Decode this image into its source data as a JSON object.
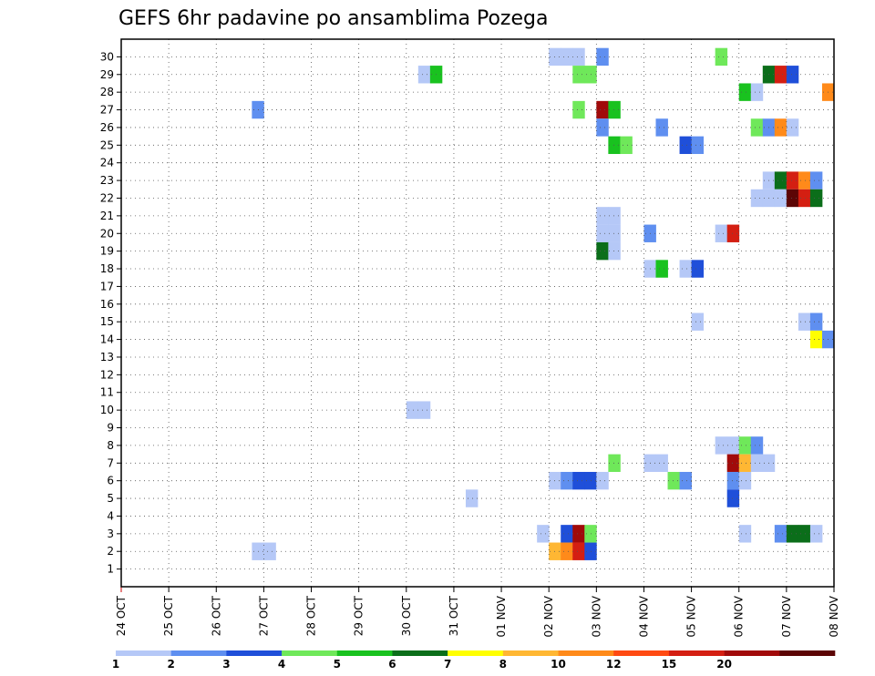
{
  "chart_data": {
    "type": "heatmap",
    "title": "GEFS 6hr padavine po ansamblima Pozega",
    "x_labels": [
      "24 OCT",
      "25 OCT",
      "26 OCT",
      "27 OCT",
      "28 OCT",
      "29 OCT",
      "30 OCT",
      "31 OCT",
      "01 NOV",
      "02 NOV",
      "03 NOV",
      "04 NOV",
      "05 NOV",
      "06 NOV",
      "07 NOV",
      "08 NOV"
    ],
    "y_labels": [
      "1",
      "2",
      "3",
      "4",
      "5",
      "6",
      "7",
      "8",
      "9",
      "10",
      "11",
      "12",
      "13",
      "14",
      "15",
      "16",
      "17",
      "18",
      "19",
      "20",
      "21",
      "22",
      "23",
      "24",
      "25",
      "26",
      "27",
      "28",
      "29",
      "30"
    ],
    "grid": true,
    "colorbar": {
      "colors": [
        "#b5c8f7",
        "#5f8ff0",
        "#1f4fd9",
        "#6fe85a",
        "#19c21f",
        "#0b6e1a",
        "#ffff00",
        "#ffb733",
        "#ff8a1a",
        "#ff4a12",
        "#d41f12",
        "#a10a0a",
        "#5c0505"
      ],
      "labels": [
        "1",
        "2",
        "3",
        "4",
        "5",
        "6",
        "7",
        "8",
        "10",
        "12",
        "15",
        "20"
      ]
    },
    "cells": [
      {
        "member": 30,
        "step": 36,
        "color": "#b5c8f7"
      },
      {
        "member": 30,
        "step": 37,
        "color": "#b5c8f7"
      },
      {
        "member": 30,
        "step": 38,
        "color": "#b5c8f7"
      },
      {
        "member": 30,
        "step": 40,
        "color": "#5f8ff0"
      },
      {
        "member": 30,
        "step": 50,
        "color": "#6fe85a"
      },
      {
        "member": 29,
        "step": 25,
        "color": "#b5c8f7"
      },
      {
        "member": 29,
        "step": 26,
        "color": "#19c21f"
      },
      {
        "member": 29,
        "step": 38,
        "color": "#6fe85a"
      },
      {
        "member": 29,
        "step": 39,
        "color": "#6fe85a"
      },
      {
        "member": 29,
        "step": 54,
        "color": "#0b6e1a"
      },
      {
        "member": 29,
        "step": 55,
        "color": "#d41f12"
      },
      {
        "member": 29,
        "step": 56,
        "color": "#1f4fd9"
      },
      {
        "member": 28,
        "step": 52,
        "color": "#19c21f"
      },
      {
        "member": 28,
        "step": 53,
        "color": "#b5c8f7"
      },
      {
        "member": 28,
        "step": 59,
        "color": "#ff8a1a"
      },
      {
        "member": 27,
        "step": 11,
        "color": "#5f8ff0"
      },
      {
        "member": 27,
        "step": 38,
        "color": "#6fe85a"
      },
      {
        "member": 27,
        "step": 40,
        "color": "#a10a0a"
      },
      {
        "member": 27,
        "step": 41,
        "color": "#19c21f"
      },
      {
        "member": 26,
        "step": 40,
        "color": "#5f8ff0"
      },
      {
        "member": 26,
        "step": 45,
        "color": "#5f8ff0"
      },
      {
        "member": 26,
        "step": 53,
        "color": "#6fe85a"
      },
      {
        "member": 26,
        "step": 54,
        "color": "#5f8ff0"
      },
      {
        "member": 26,
        "step": 55,
        "color": "#ff8a1a"
      },
      {
        "member": 26,
        "step": 56,
        "color": "#b5c8f7"
      },
      {
        "member": 25,
        "step": 41,
        "color": "#19c21f"
      },
      {
        "member": 25,
        "step": 42,
        "color": "#6fe85a"
      },
      {
        "member": 25,
        "step": 47,
        "color": "#1f4fd9"
      },
      {
        "member": 25,
        "step": 48,
        "color": "#5f8ff0"
      },
      {
        "member": 23,
        "step": 54,
        "color": "#b5c8f7"
      },
      {
        "member": 23,
        "step": 55,
        "color": "#0b6e1a"
      },
      {
        "member": 23,
        "step": 56,
        "color": "#d41f12"
      },
      {
        "member": 23,
        "step": 57,
        "color": "#ff8a1a"
      },
      {
        "member": 23,
        "step": 58,
        "color": "#5f8ff0"
      },
      {
        "member": 22,
        "step": 53,
        "color": "#b5c8f7"
      },
      {
        "member": 22,
        "step": 54,
        "color": "#b5c8f7"
      },
      {
        "member": 22,
        "step": 55,
        "color": "#b5c8f7"
      },
      {
        "member": 22,
        "step": 56,
        "color": "#5c0505"
      },
      {
        "member": 22,
        "step": 57,
        "color": "#d41f12"
      },
      {
        "member": 22,
        "step": 58,
        "color": "#0b6e1a"
      },
      {
        "member": 21,
        "step": 40,
        "color": "#b5c8f7"
      },
      {
        "member": 21,
        "step": 41,
        "color": "#b5c8f7"
      },
      {
        "member": 20,
        "step": 40,
        "color": "#b5c8f7"
      },
      {
        "member": 20,
        "step": 41,
        "color": "#b5c8f7"
      },
      {
        "member": 20,
        "step": 44,
        "color": "#5f8ff0"
      },
      {
        "member": 20,
        "step": 50,
        "color": "#b5c8f7"
      },
      {
        "member": 20,
        "step": 51,
        "color": "#d41f12"
      },
      {
        "member": 19,
        "step": 40,
        "color": "#0b6e1a"
      },
      {
        "member": 19,
        "step": 41,
        "color": "#b5c8f7"
      },
      {
        "member": 18,
        "step": 44,
        "color": "#b5c8f7"
      },
      {
        "member": 18,
        "step": 45,
        "color": "#19c21f"
      },
      {
        "member": 18,
        "step": 47,
        "color": "#b5c8f7"
      },
      {
        "member": 18,
        "step": 48,
        "color": "#1f4fd9"
      },
      {
        "member": 15,
        "step": 48,
        "color": "#b5c8f7"
      },
      {
        "member": 15,
        "step": 57,
        "color": "#b5c8f7"
      },
      {
        "member": 15,
        "step": 58,
        "color": "#5f8ff0"
      },
      {
        "member": 14,
        "step": 58,
        "color": "#ffff00"
      },
      {
        "member": 14,
        "step": 59,
        "color": "#5f8ff0"
      },
      {
        "member": 10,
        "step": 24,
        "color": "#b5c8f7"
      },
      {
        "member": 10,
        "step": 25,
        "color": "#b5c8f7"
      },
      {
        "member": 8,
        "step": 50,
        "color": "#b5c8f7"
      },
      {
        "member": 8,
        "step": 51,
        "color": "#b5c8f7"
      },
      {
        "member": 8,
        "step": 52,
        "color": "#6fe85a"
      },
      {
        "member": 8,
        "step": 53,
        "color": "#5f8ff0"
      },
      {
        "member": 7,
        "step": 41,
        "color": "#6fe85a"
      },
      {
        "member": 7,
        "step": 44,
        "color": "#b5c8f7"
      },
      {
        "member": 7,
        "step": 45,
        "color": "#b5c8f7"
      },
      {
        "member": 7,
        "step": 51,
        "color": "#a10a0a"
      },
      {
        "member": 7,
        "step": 52,
        "color": "#ffb733"
      },
      {
        "member": 7,
        "step": 53,
        "color": "#b5c8f7"
      },
      {
        "member": 7,
        "step": 54,
        "color": "#b5c8f7"
      },
      {
        "member": 6,
        "step": 36,
        "color": "#b5c8f7"
      },
      {
        "member": 6,
        "step": 37,
        "color": "#5f8ff0"
      },
      {
        "member": 6,
        "step": 38,
        "color": "#1f4fd9"
      },
      {
        "member": 6,
        "step": 39,
        "color": "#1f4fd9"
      },
      {
        "member": 6,
        "step": 40,
        "color": "#b5c8f7"
      },
      {
        "member": 6,
        "step": 46,
        "color": "#6fe85a"
      },
      {
        "member": 6,
        "step": 47,
        "color": "#5f8ff0"
      },
      {
        "member": 6,
        "step": 51,
        "color": "#5f8ff0"
      },
      {
        "member": 6,
        "step": 52,
        "color": "#b5c8f7"
      },
      {
        "member": 5,
        "step": 29,
        "color": "#b5c8f7"
      },
      {
        "member": 5,
        "step": 51,
        "color": "#1f4fd9"
      },
      {
        "member": 3,
        "step": 35,
        "color": "#b5c8f7"
      },
      {
        "member": 3,
        "step": 37,
        "color": "#1f4fd9"
      },
      {
        "member": 3,
        "step": 38,
        "color": "#a10a0a"
      },
      {
        "member": 3,
        "step": 39,
        "color": "#6fe85a"
      },
      {
        "member": 3,
        "step": 52,
        "color": "#b5c8f7"
      },
      {
        "member": 3,
        "step": 55,
        "color": "#5f8ff0"
      },
      {
        "member": 3,
        "step": 56,
        "color": "#0b6e1a"
      },
      {
        "member": 3,
        "step": 57,
        "color": "#0b6e1a"
      },
      {
        "member": 3,
        "step": 58,
        "color": "#b5c8f7"
      },
      {
        "member": 2,
        "step": 11,
        "color": "#b5c8f7"
      },
      {
        "member": 2,
        "step": 12,
        "color": "#b5c8f7"
      },
      {
        "member": 2,
        "step": 36,
        "color": "#ffb733"
      },
      {
        "member": 2,
        "step": 37,
        "color": "#ff8a1a"
      },
      {
        "member": 2,
        "step": 38,
        "color": "#d41f12"
      },
      {
        "member": 2,
        "step": 39,
        "color": "#1f4fd9"
      }
    ]
  }
}
